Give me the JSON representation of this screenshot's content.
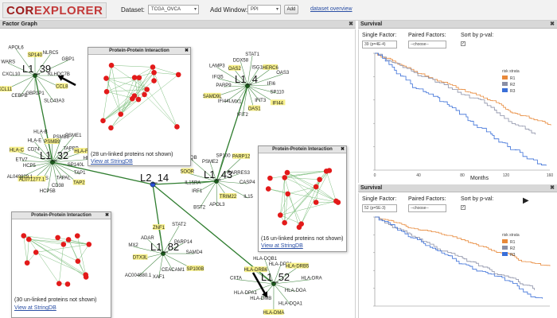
{
  "app": {
    "logo_part1": "Cor",
    "logo_part2": "Explorer"
  },
  "toolbar": {
    "dataset_label": "Dataset:",
    "dataset_value": "TCGA_OVCA",
    "add_window_label": "Add Window:",
    "add_window_value": "PPI",
    "add_button": "Add",
    "overview_link": "dataset overview"
  },
  "factor_graph": {
    "title": "Factor Graph",
    "close": "✖",
    "hub_nodes": [
      {
        "id": "L1_39",
        "label": "L1_39"
      },
      {
        "id": "L1_4",
        "label": "L1_4"
      },
      {
        "id": "L1_32",
        "label": "L1_32"
      },
      {
        "id": "L2_14",
        "label": "L2_14"
      },
      {
        "id": "L1_43",
        "label": "L1_43"
      },
      {
        "id": "L1_82",
        "label": "L1_82"
      },
      {
        "id": "L1_52",
        "label": "L1_52"
      }
    ],
    "gene_labels": [
      "KLHDC7B",
      "CCL8",
      "SLC43A3",
      "GBP1P1",
      "CEBPB",
      "CXCL11",
      "CXCL10",
      "WARS",
      "APOL6",
      "SP140",
      "NLRC5",
      "GBP1",
      "IFIT3",
      "OAS1",
      "IFIT2",
      "MX1",
      "IFI44L",
      "SAMD9L",
      "PARP9",
      "IFI35",
      "LAMP3",
      "OAS2",
      "DDX58",
      "STAT1",
      "ISG15",
      "HERC6",
      "OAS3",
      "IFI6",
      "SP110",
      "IFI44",
      "ICOS",
      "AL071277.1",
      "AL049829.1",
      "HCP5",
      "ETV7",
      "HLA-C",
      "CD74",
      "HLA-E",
      "HLA-B",
      "PSMB9",
      "PSMB8",
      "PSME1",
      "TAPBP",
      "HLA-F",
      "HLA-G",
      "SP140L",
      "TAP1",
      "TAP2",
      "TAPAL",
      "CD38",
      "HCP5B",
      "IL15RA",
      "SOOR",
      "C1QB",
      "PSME2",
      "SP100",
      "PARP12",
      "RARRES3",
      "CASP4",
      "IL15",
      "TRIM22",
      "APOL3",
      "BST2",
      "IRF1",
      "ADAR",
      "ZNF1",
      "STAT2",
      "PARP14",
      "SAMD4",
      "SP100B",
      "CEACAM1",
      "XAF1",
      "AC004880.1",
      "DTX3L",
      "MX2",
      "HLA-DPB1",
      "HLA-DRB5",
      "HLA-DRA",
      "HLA-DOA",
      "HLA-DQA1",
      "HLA-DMA",
      "HLA-DMB",
      "HLA-DPA1",
      "CIITA",
      "HLA-DRB6",
      "HLA-DQB1"
    ]
  },
  "ppi_windows": [
    {
      "id": "ppi1",
      "title": "Protein-Protein Interaction",
      "close": "✖",
      "unlinked_text": "(28 un-linked proteins not shown)",
      "link_text": "View at StringDB"
    },
    {
      "id": "ppi2",
      "title": "Protein-Protein Interaction",
      "close": "✖",
      "unlinked_text": "(16 un-linked proteins not shown)",
      "link_text": "View at StringDB"
    },
    {
      "id": "ppi3",
      "title": "Protein-Protein Interaction",
      "close": "✖",
      "unlinked_text": "(30 un-linked proteins not shown)",
      "link_text": "View at StringDB"
    }
  ],
  "survival_panels": [
    {
      "title": "Survival",
      "close": "✖",
      "single_factor_label": "Single Factor:",
      "single_factor_value": "39 (p=4E-4)",
      "paired_factors_label": "Paired Factors:",
      "paired_factors_value": "--choose--",
      "sort_label": "Sort by p-val:",
      "sort_checked": true,
      "legend_title": "risk strata",
      "legend": [
        {
          "name": "R1",
          "color": "#e8893a"
        },
        {
          "name": "R2",
          "color": "#8a8fa6"
        },
        {
          "name": "R3",
          "color": "#3a6fd8"
        }
      ],
      "x_label": "Months",
      "x_ticks": [
        "0",
        "40",
        "80",
        "120",
        "160"
      ]
    },
    {
      "title": "Survival",
      "close": "✖",
      "single_factor_label": "Single Factor:",
      "single_factor_value": "52 (p=5E-3)",
      "paired_factors_label": "Paired Factors:",
      "paired_factors_value": "--choose--",
      "sort_label": "Sort by p-val:",
      "sort_checked": true,
      "legend_title": "risk strata",
      "legend": [
        {
          "name": "R1",
          "color": "#e8893a"
        },
        {
          "name": "R2",
          "color": "#8a8fa6"
        },
        {
          "name": "R3",
          "color": "#3a6fd8"
        }
      ],
      "play_icon": "▶"
    }
  ]
}
